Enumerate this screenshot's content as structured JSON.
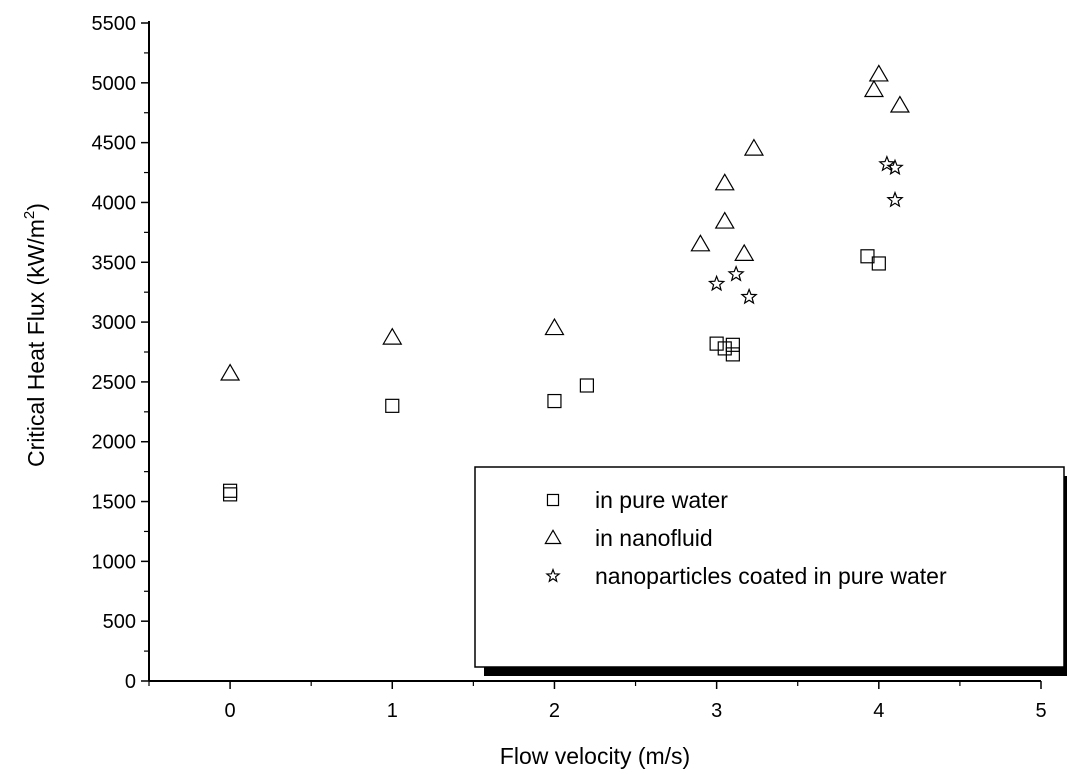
{
  "chart_data": {
    "type": "scatter",
    "xlabel": "Flow velocity (m/s)",
    "ylabel_main": "Critical Heat Flux (kW/m",
    "ylabel_sup": "2",
    "ylabel_close": ")",
    "xlim": [
      -0.5,
      5
    ],
    "ylim": [
      0,
      5500
    ],
    "xticks": [
      0,
      1,
      2,
      3,
      4,
      5
    ],
    "yticks": [
      0,
      500,
      1000,
      1500,
      2000,
      2500,
      3000,
      3500,
      4000,
      4500,
      5000,
      5500
    ],
    "grid": false,
    "legend_position": "bottom-right",
    "series": [
      {
        "name": "in pure water",
        "marker": "square",
        "points": [
          [
            0,
            1590
          ],
          [
            0,
            1560
          ],
          [
            1,
            2300
          ],
          [
            2,
            2340
          ],
          [
            2.2,
            2470
          ],
          [
            3.0,
            2820
          ],
          [
            3.05,
            2780
          ],
          [
            3.1,
            2810
          ],
          [
            3.1,
            2730
          ],
          [
            3.93,
            3550
          ],
          [
            4.0,
            3490
          ]
        ]
      },
      {
        "name": "in nanofluid",
        "marker": "triangle",
        "points": [
          [
            0,
            2570
          ],
          [
            1,
            2870
          ],
          [
            2,
            2950
          ],
          [
            2.9,
            3650
          ],
          [
            3.05,
            4160
          ],
          [
            3.05,
            3840
          ],
          [
            3.17,
            3570
          ],
          [
            3.23,
            4450
          ],
          [
            3.97,
            4940
          ],
          [
            4.0,
            5070
          ],
          [
            4.13,
            4810
          ]
        ]
      },
      {
        "name": "nanoparticles coated in pure water",
        "marker": "star",
        "points": [
          [
            3.0,
            3320
          ],
          [
            3.12,
            3400
          ],
          [
            3.2,
            3210
          ],
          [
            4.05,
            4320
          ],
          [
            4.1,
            4290
          ],
          [
            4.1,
            4020
          ]
        ]
      }
    ]
  }
}
